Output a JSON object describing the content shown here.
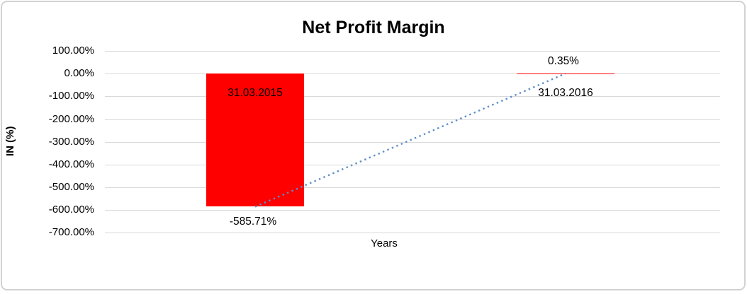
{
  "chart": {
    "title": "Net Profit Margin",
    "y_axis_title": "IN (%)",
    "x_axis_title": "Years"
  },
  "chart_data": {
    "type": "bar",
    "title": "Net Profit Margin",
    "xlabel": "Years",
    "ylabel": "IN (%)",
    "categories": [
      "31.03.2015",
      "31.03.2016"
    ],
    "series": [
      {
        "name": "Net Profit Margin",
        "type": "bar",
        "color": "#ff0000",
        "values": [
          -585.71,
          0.35
        ]
      },
      {
        "name": "Trend",
        "type": "line",
        "line_style": "dotted",
        "color": "#5b8dc8",
        "values": [
          -585.71,
          0.35
        ]
      }
    ],
    "data_labels": [
      "-585.71%",
      "0.35%"
    ],
    "yticks": [
      "100.00%",
      "0.00%",
      "-100.00%",
      "-200.00%",
      "-300.00%",
      "-400.00%",
      "-500.00%",
      "-600.00%",
      "-700.00%"
    ],
    "ylim": [
      -700,
      100
    ],
    "grid": true,
    "legend": false,
    "colors": {
      "bar": "#ff0000",
      "trend_line": "#5b8dc8",
      "gridline": "#d9d9d9",
      "frame_border": "#d2d2d2",
      "text": "#000000"
    }
  }
}
